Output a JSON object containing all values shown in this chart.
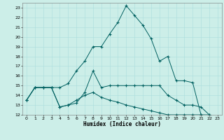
{
  "xlabel": "Humidex (Indice chaleur)",
  "background_color": "#cceee8",
  "line_color": "#006060",
  "grid_color": "#aadddd",
  "xlim": [
    -0.5,
    23.5
  ],
  "ylim": [
    12,
    23.5
  ],
  "xticks": [
    0,
    1,
    2,
    3,
    4,
    5,
    6,
    7,
    8,
    9,
    10,
    11,
    12,
    13,
    14,
    15,
    16,
    17,
    18,
    19,
    20,
    21,
    22,
    23
  ],
  "yticks": [
    12,
    13,
    14,
    15,
    16,
    17,
    18,
    19,
    20,
    21,
    22,
    23
  ],
  "line1_x": [
    0,
    1,
    2,
    3,
    4,
    5,
    6,
    7,
    8,
    9,
    10,
    11,
    12,
    13,
    14,
    15,
    16,
    17,
    18,
    19,
    20,
    21,
    22,
    23
  ],
  "line1_y": [
    13.5,
    14.8,
    14.8,
    14.8,
    14.8,
    15.2,
    16.5,
    17.5,
    19.0,
    19.0,
    20.3,
    21.5,
    23.2,
    22.2,
    21.2,
    19.8,
    17.5,
    18.0,
    15.5,
    15.5,
    15.3,
    12.0,
    11.8,
    11.7
  ],
  "line2_x": [
    0,
    1,
    2,
    3,
    4,
    5,
    6,
    7,
    8,
    9,
    10,
    11,
    12,
    13,
    14,
    15,
    16,
    17,
    18,
    19,
    20,
    21,
    22,
    23
  ],
  "line2_y": [
    13.5,
    14.8,
    14.8,
    14.8,
    12.8,
    13.0,
    13.2,
    14.3,
    16.5,
    14.8,
    15.0,
    15.0,
    15.0,
    15.0,
    15.0,
    15.0,
    15.0,
    14.0,
    13.5,
    13.0,
    13.0,
    12.8,
    12.0,
    11.8
  ],
  "line3_x": [
    0,
    1,
    2,
    3,
    4,
    5,
    6,
    7,
    8,
    9,
    10,
    11,
    12,
    13,
    14,
    15,
    16,
    17,
    18,
    19,
    20,
    21,
    22,
    23
  ],
  "line3_y": [
    13.5,
    14.8,
    14.8,
    14.8,
    12.8,
    13.0,
    13.5,
    14.0,
    14.3,
    13.8,
    13.5,
    13.3,
    13.0,
    12.8,
    12.6,
    12.4,
    12.2,
    12.0,
    12.0,
    12.0,
    12.0,
    12.0,
    12.0,
    11.8
  ]
}
